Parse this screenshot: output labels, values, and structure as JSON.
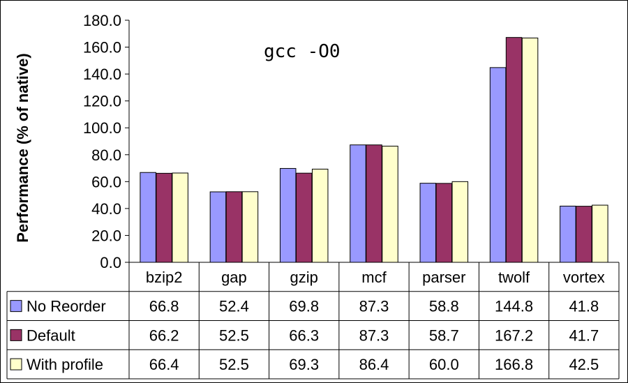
{
  "chart_data": {
    "type": "bar",
    "title": "gcc -O0",
    "ylabel": "Performance (% of native)",
    "xlabel": "",
    "ylim": [
      0,
      180
    ],
    "yticks": [
      "0.0",
      "20.0",
      "40.0",
      "60.0",
      "80.0",
      "100.0",
      "120.0",
      "140.0",
      "160.0",
      "180.0"
    ],
    "categories": [
      "bzip2",
      "gap",
      "gzip",
      "mcf",
      "parser",
      "twolf",
      "vortex"
    ],
    "series": [
      {
        "name": "No Reorder",
        "color": "#9999ff",
        "values": [
          66.8,
          52.4,
          69.8,
          87.3,
          58.8,
          144.8,
          41.8
        ],
        "labels": [
          "66.8",
          "52.4",
          "69.8",
          "87.3",
          "58.8",
          "144.8",
          "41.8"
        ]
      },
      {
        "name": "Default",
        "color": "#993366",
        "values": [
          66.2,
          52.5,
          66.3,
          87.3,
          58.7,
          167.2,
          41.7
        ],
        "labels": [
          "66.2",
          "52.5",
          "66.3",
          "87.3",
          "58.7",
          "167.2",
          "41.7"
        ]
      },
      {
        "name": "With profile",
        "color": "#ffffcc",
        "values": [
          66.4,
          52.5,
          69.3,
          86.4,
          60.0,
          166.8,
          42.5
        ],
        "labels": [
          "66.4",
          "52.5",
          "69.3",
          "86.4",
          "60.0",
          "166.8",
          "42.5"
        ]
      }
    ],
    "legend": "data-table",
    "grid": false
  }
}
